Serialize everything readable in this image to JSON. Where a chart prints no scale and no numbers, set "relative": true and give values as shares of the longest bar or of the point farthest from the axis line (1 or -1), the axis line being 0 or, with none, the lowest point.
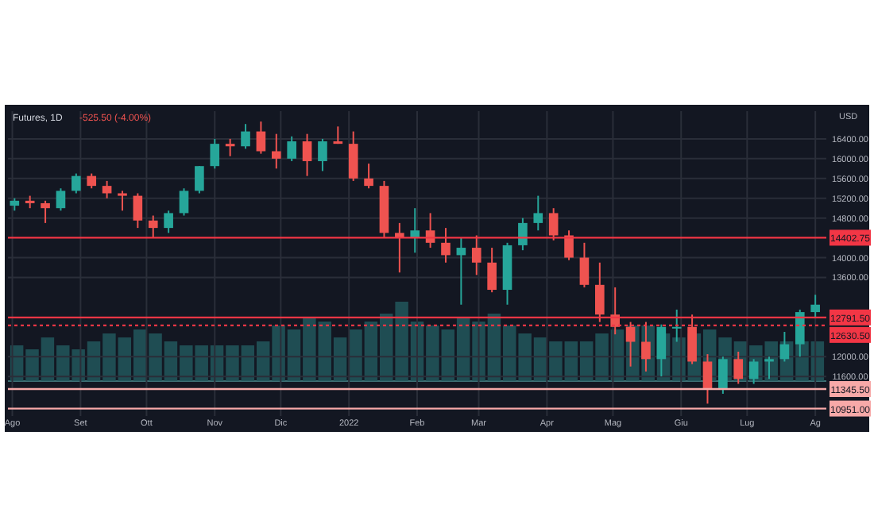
{
  "chart_data": [
    {
      "type": "candlestick",
      "title": "Futures, 1D",
      "ylabel": "USD",
      "annotations": [
        "-525.50 (-4.00%)"
      ],
      "x": [
        "2021-08-02",
        "2021-08-09",
        "2021-08-16",
        "2021-08-23",
        "2021-08-30",
        "2021-09-06",
        "2021-09-13",
        "2021-09-20",
        "2021-09-27",
        "2021-10-04",
        "2021-10-11",
        "2021-10-18",
        "2021-10-25",
        "2021-11-01",
        "2021-11-08",
        "2021-11-15",
        "2021-11-22",
        "2021-11-29",
        "2021-12-06",
        "2021-12-13",
        "2021-12-20",
        "2021-12-27",
        "2022-01-03",
        "2022-01-10",
        "2022-01-17",
        "2022-01-24",
        "2022-01-31",
        "2022-02-07",
        "2022-02-14",
        "2022-02-21",
        "2022-02-28",
        "2022-03-07",
        "2022-03-14",
        "2022-03-21",
        "2022-03-28",
        "2022-04-04",
        "2022-04-11",
        "2022-04-18",
        "2022-04-25",
        "2022-05-02",
        "2022-05-09",
        "2022-05-16",
        "2022-05-23",
        "2022-05-30",
        "2022-06-06",
        "2022-06-13",
        "2022-06-20",
        "2022-06-27",
        "2022-07-04",
        "2022-07-11",
        "2022-07-18",
        "2022-07-25",
        "2022-08-01"
      ],
      "ohlc": [
        [
          15050,
          15200,
          14950,
          15150
        ],
        [
          15150,
          15250,
          15000,
          15100
        ],
        [
          15100,
          15150,
          14700,
          15000
        ],
        [
          15000,
          15400,
          14950,
          15350
        ],
        [
          15350,
          15700,
          15300,
          15650
        ],
        [
          15650,
          15700,
          15400,
          15450
        ],
        [
          15450,
          15550,
          15200,
          15300
        ],
        [
          15300,
          15350,
          14950,
          15250
        ],
        [
          15250,
          15300,
          14600,
          14750
        ],
        [
          14750,
          14850,
          14400,
          14600
        ],
        [
          14600,
          14950,
          14500,
          14900
        ],
        [
          14900,
          15400,
          14850,
          15350
        ],
        [
          15350,
          15850,
          15300,
          15850
        ],
        [
          15850,
          16400,
          15800,
          16300
        ],
        [
          16300,
          16400,
          16050,
          16250
        ],
        [
          16250,
          16700,
          16200,
          16550
        ],
        [
          16550,
          16750,
          16100,
          16150
        ],
        [
          16150,
          16500,
          15800,
          16000
        ],
        [
          16000,
          16450,
          15950,
          16350
        ],
        [
          16350,
          16500,
          15650,
          15950
        ],
        [
          15950,
          16400,
          15750,
          16350
        ],
        [
          16350,
          16650,
          16300,
          16300
        ],
        [
          16300,
          16550,
          15550,
          15600
        ],
        [
          15600,
          15900,
          15400,
          15450
        ],
        [
          15450,
          15550,
          14400,
          14500
        ],
        [
          14500,
          14700,
          13700,
          14400
        ],
        [
          14400,
          15000,
          14100,
          14550
        ],
        [
          14550,
          14900,
          14200,
          14300
        ],
        [
          14300,
          14600,
          13900,
          14050
        ],
        [
          14050,
          14400,
          13050,
          14200
        ],
        [
          14200,
          14450,
          13650,
          13900
        ],
        [
          13900,
          14200,
          13300,
          13350
        ],
        [
          13350,
          14300,
          13050,
          14250
        ],
        [
          14250,
          14800,
          14150,
          14700
        ],
        [
          14700,
          15250,
          14550,
          14900
        ],
        [
          14900,
          15000,
          14350,
          14450
        ],
        [
          14450,
          14550,
          13950,
          14000
        ],
        [
          14000,
          14300,
          13400,
          13450
        ],
        [
          13450,
          13900,
          12700,
          12850
        ],
        [
          12850,
          13400,
          12450,
          12600
        ],
        [
          12600,
          12700,
          11800,
          12300
        ],
        [
          12300,
          12700,
          11700,
          11950
        ],
        [
          11950,
          12650,
          11600,
          12600
        ],
        [
          12600,
          12950,
          12300,
          12600
        ],
        [
          12600,
          12850,
          11850,
          11900
        ],
        [
          11900,
          12050,
          11050,
          11350
        ],
        [
          11350,
          12000,
          11250,
          11950
        ],
        [
          11950,
          12100,
          11450,
          11550
        ],
        [
          11550,
          11950,
          11450,
          11900
        ],
        [
          11900,
          12000,
          11550,
          11950
        ],
        [
          11950,
          12500,
          11900,
          12250
        ],
        [
          12250,
          12950,
          12000,
          12900
        ],
        [
          12900,
          13250,
          12800,
          13050
        ]
      ],
      "xlim": [
        "2021-07-30",
        "2022-08-06"
      ],
      "xticks": [
        {
          "value": "2021-08-01",
          "label": "Ago"
        },
        {
          "value": "2021-09-01",
          "label": "Set"
        },
        {
          "value": "2021-10-01",
          "label": "Ott"
        },
        {
          "value": "2021-11-01",
          "label": "Nov"
        },
        {
          "value": "2021-12-01",
          "label": "Dic"
        },
        {
          "value": "2022-01-01",
          "label": "2022"
        },
        {
          "value": "2022-02-01",
          "label": "Feb"
        },
        {
          "value": "2022-03-01",
          "label": "Mar"
        },
        {
          "value": "2022-04-01",
          "label": "Apr"
        },
        {
          "value": "2022-05-01",
          "label": "Mag"
        },
        {
          "value": "2022-06-01",
          "label": "Giu"
        },
        {
          "value": "2022-07-01",
          "label": "Lug"
        },
        {
          "value": "2022-08-01",
          "label": "Ag"
        }
      ],
      "ylim": [
        10800,
        16960
      ],
      "yticks": [
        {
          "value": 11600,
          "label": "11600.00"
        },
        {
          "value": 12000,
          "label": "12000.00"
        },
        {
          "value": 13600,
          "label": "13600.00"
        },
        {
          "value": 14000,
          "label": "14000.00"
        },
        {
          "value": 14800,
          "label": "14800.00"
        },
        {
          "value": 15200,
          "label": "15200.00"
        },
        {
          "value": 15600,
          "label": "15600.00"
        },
        {
          "value": 16000,
          "label": "16000.00"
        },
        {
          "value": 16400,
          "label": "16400.00"
        }
      ],
      "grid": true,
      "ref_lines": [
        {
          "axis": "y",
          "value": 14402.75,
          "label": "14402.75",
          "color": "#f23645",
          "line_style": "solid"
        },
        {
          "axis": "y",
          "value": 12791.5,
          "label": "12791.50",
          "color": "#f23645",
          "line_style": "solid"
        },
        {
          "axis": "y",
          "value": 12630.5,
          "label": "12630.50",
          "color": "#f23645",
          "line_style": "dotted"
        },
        {
          "axis": "y",
          "value": 11345.5,
          "label": "11345.50",
          "color": "#f7a9a8",
          "line_style": "solid"
        },
        {
          "axis": "y",
          "value": 10951,
          "label": "10951.00",
          "color": "#f7a9a8",
          "line_style": "solid"
        }
      ]
    },
    {
      "type": "bar",
      "relative": true,
      "color": "#22575c",
      "categories": [
        null,
        null,
        null,
        null,
        null,
        null,
        null,
        null,
        null,
        null,
        null,
        null,
        null,
        null,
        null,
        null,
        null,
        null,
        null,
        null,
        null,
        null,
        null,
        null,
        null,
        null,
        null,
        null,
        null,
        null,
        null,
        null,
        null,
        null,
        null,
        null,
        null,
        null,
        null,
        null,
        null,
        null,
        null,
        null,
        null,
        null,
        null,
        null,
        null,
        null,
        null,
        null,
        null
      ],
      "values": [
        0.45,
        0.4,
        0.55,
        0.45,
        0.4,
        0.5,
        0.6,
        0.55,
        0.65,
        0.6,
        0.5,
        0.45,
        0.45,
        0.45,
        0.45,
        0.45,
        0.5,
        0.7,
        0.65,
        0.8,
        0.75,
        0.55,
        0.65,
        0.75,
        0.85,
        1.0,
        0.75,
        0.7,
        0.65,
        0.8,
        0.75,
        0.85,
        0.7,
        0.6,
        0.55,
        0.5,
        0.5,
        0.5,
        0.6,
        0.65,
        0.7,
        0.7,
        0.6,
        0.55,
        0.6,
        0.65,
        0.55,
        0.5,
        0.45,
        0.5,
        0.5,
        0.5,
        0.5
      ]
    }
  ]
}
